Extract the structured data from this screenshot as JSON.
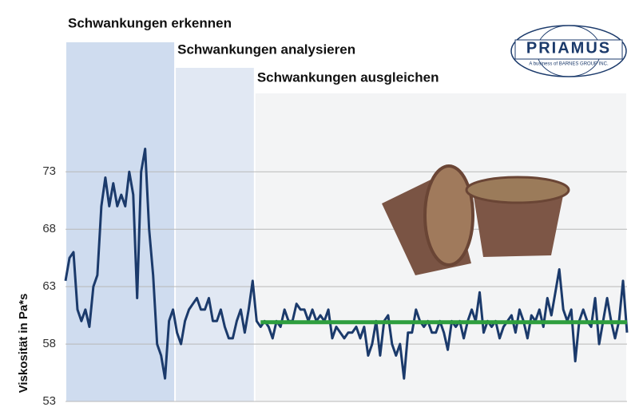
{
  "chart_data": {
    "type": "line",
    "y_label": "Viskosität in Pa*s",
    "logo": {
      "name": "PRIAMUS",
      "tagline": "A business of BARNES GROUP INC."
    },
    "ylim": [
      53,
      84
    ],
    "yticks": [
      53,
      58,
      63,
      68,
      73
    ],
    "grid": true,
    "regions": [
      {
        "label": "Schwankungen erkennen",
        "start": 0,
        "end": 27,
        "color": "#cfdcef"
      },
      {
        "label": "Schwankungen analysieren",
        "start": 28,
        "end": 47,
        "color": "#e1e8f3"
      },
      {
        "label": "Schwankungen ausgleichen",
        "start": 48,
        "end": 141,
        "color": "#f3f4f5"
      }
    ],
    "target": {
      "value": 59.9,
      "start": 49,
      "end": 141,
      "color": "#2e9e3e"
    },
    "series": [
      {
        "color": "#1b3a6b",
        "values": [
          63.5,
          65.5,
          66,
          61,
          60,
          61,
          59.5,
          63,
          64,
          70,
          72.5,
          70,
          72,
          70,
          71,
          70,
          73,
          71,
          62,
          73,
          75,
          68,
          64,
          58,
          57,
          55,
          60,
          61,
          59,
          58,
          60,
          61,
          61.5,
          62,
          61,
          61,
          62,
          60,
          60,
          61,
          59.5,
          58.5,
          58.5,
          60,
          61,
          59,
          61,
          63.5,
          60,
          59.5,
          60,
          59.5,
          58.5,
          60,
          59.5,
          61,
          60,
          60,
          61.5,
          61,
          61,
          60,
          61,
          60,
          60.5,
          60,
          61,
          58.5,
          59.5,
          59,
          58.5,
          59,
          59,
          59.5,
          58.5,
          59.5,
          57,
          58,
          60,
          57,
          60,
          60.5,
          58,
          57,
          58,
          55,
          59,
          59,
          61,
          60,
          59.5,
          60,
          59,
          59,
          60,
          59,
          57.5,
          60,
          59.5,
          60,
          58.5,
          60,
          61,
          60,
          62.5,
          59,
          60,
          59.5,
          60,
          58.5,
          59.5,
          60,
          60.5,
          59,
          61,
          60,
          58.5,
          60.5,
          60,
          61,
          59.5,
          62,
          60.5,
          62.5,
          64.5,
          61,
          60,
          61,
          56.5,
          60,
          61,
          60,
          59.5,
          62,
          58,
          60,
          62,
          60,
          58.5,
          60,
          63.5,
          59
        ]
      }
    ]
  }
}
